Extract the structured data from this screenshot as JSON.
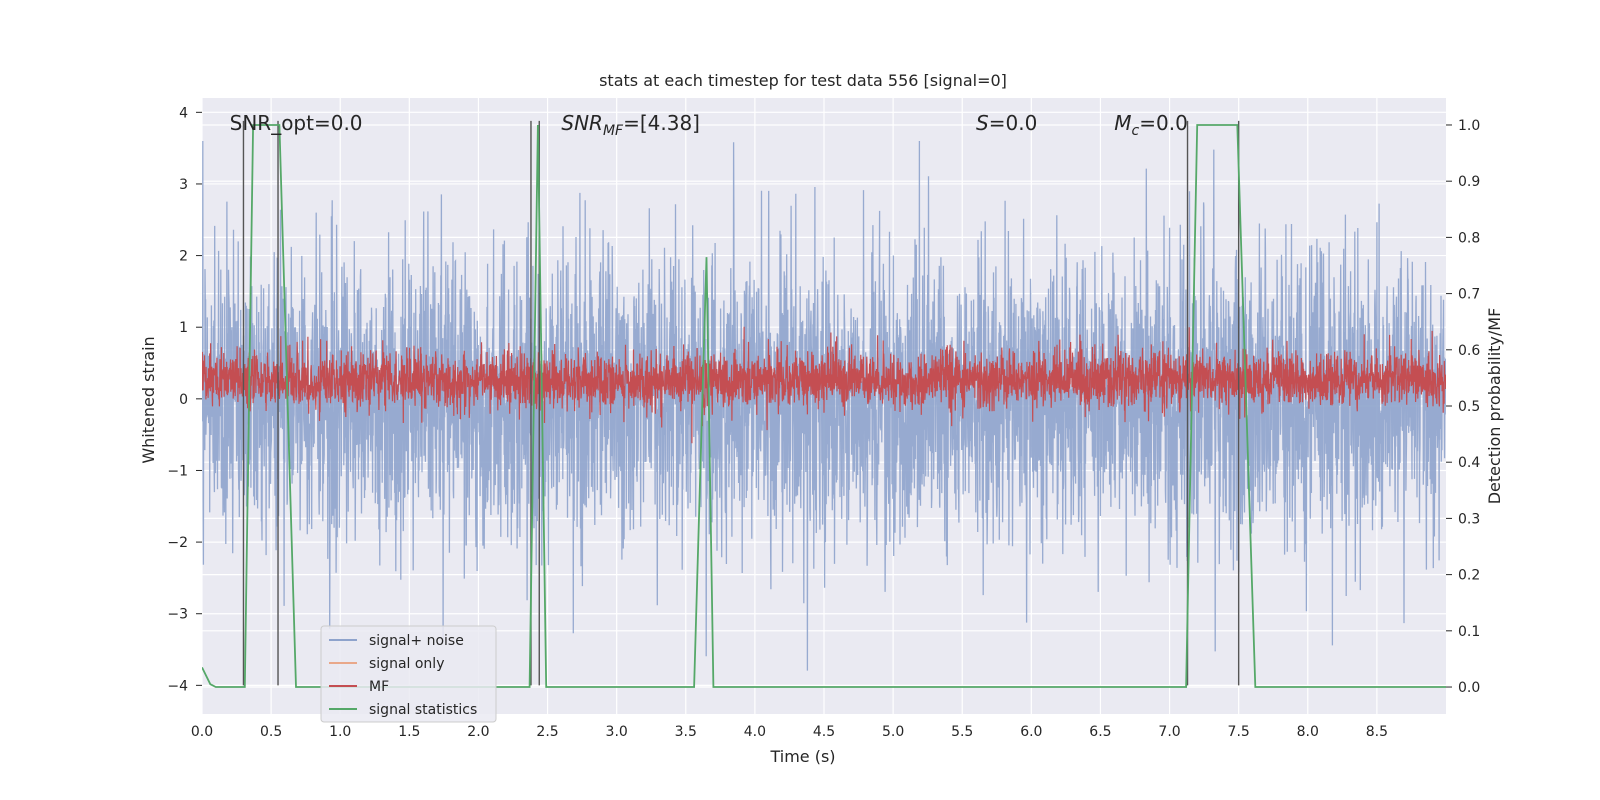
{
  "chart_data": {
    "type": "line",
    "title": "stats at each timestep for test data 556 [signal=0]",
    "xlabel": "Time (s)",
    "ylabel": "Whitened strain",
    "y2label": "Detection probability/MF",
    "xlim": [
      0.0,
      9.0
    ],
    "ylim": [
      -4.4,
      4.2
    ],
    "y2lim": [
      -0.048,
      1.048
    ],
    "xticks": [
      "0.0",
      "0.5",
      "1.0",
      "1.5",
      "2.0",
      "2.5",
      "3.0",
      "3.5",
      "4.0",
      "4.5",
      "5.0",
      "5.5",
      "6.0",
      "6.5",
      "7.0",
      "7.5",
      "8.0",
      "8.5"
    ],
    "yticks": [
      "−4",
      "−3",
      "−2",
      "−1",
      "0",
      "1",
      "2",
      "3",
      "4"
    ],
    "y2ticks": [
      "0.0",
      "0.1",
      "0.2",
      "0.3",
      "0.4",
      "0.5",
      "0.6",
      "0.7",
      "0.8",
      "0.9",
      "1.0"
    ],
    "grid": true,
    "legend": {
      "placement": "lower-left",
      "entries": [
        {
          "label": "signal+ noise",
          "color": "#8ea3cc"
        },
        {
          "label": "signal only",
          "color": "#e9a88a"
        },
        {
          "label": "MF",
          "color": "#c44e52"
        },
        {
          "label": "signal statistics",
          "color": "#55a868"
        }
      ]
    },
    "annotations": [
      {
        "text": "SNR_opt=0.0",
        "x": 0.2,
        "y": 3.85,
        "italic": false
      },
      {
        "text": "SNR_MF=[4.38]",
        "x": 2.6,
        "y": 3.85,
        "italic": true
      },
      {
        "text": "S=0.0",
        "x": 5.6,
        "y": 3.85,
        "italic": true
      },
      {
        "text": "M_c=0.0",
        "x": 6.6,
        "y": 3.85,
        "italic": true
      }
    ],
    "series": [
      {
        "name": "signal+ noise",
        "color": "#8ea3cc",
        "axis": "left",
        "sampling_rate": 500,
        "noise_std": 1.0,
        "x_start": 0.0,
        "x_end": 9.0
      },
      {
        "name": "MF",
        "color": "#c44e52",
        "axis": "right",
        "sampling_rate": 500,
        "mean": 0.545,
        "spread": 0.025,
        "x_start": 0.0,
        "x_end": 9.0
      },
      {
        "name": "signal statistics",
        "color": "#55a868",
        "axis": "right",
        "x": [
          0.0,
          0.06,
          0.1,
          0.31,
          0.37,
          0.56,
          0.68,
          2.37,
          2.43,
          2.49,
          3.56,
          3.65,
          3.7,
          7.12,
          7.2,
          7.49,
          7.62,
          9.0
        ],
        "values": [
          0.035,
          0.005,
          0.0,
          0.0,
          1.0,
          1.0,
          0.0,
          0.0,
          1.0,
          0.0,
          0.0,
          0.765,
          0.0,
          0.0,
          1.0,
          1.0,
          0.0,
          0.0
        ]
      }
    ],
    "vlines": [
      {
        "x": 0.3,
        "y_from": -4.0,
        "y_to": 3.88
      },
      {
        "x": 0.55,
        "y_from": -4.0,
        "y_to": 3.88
      },
      {
        "x": 2.38,
        "y_from": -4.0,
        "y_to": 3.88
      },
      {
        "x": 2.44,
        "y_from": -4.0,
        "y_to": 3.88
      },
      {
        "x": 7.13,
        "y_from": -4.0,
        "y_to": 3.88
      },
      {
        "x": 7.5,
        "y_from": -4.0,
        "y_to": 3.88
      }
    ],
    "colors": {
      "plot_background": "#eaeaf2",
      "grid": "#ffffff",
      "vline": "#555555"
    }
  }
}
